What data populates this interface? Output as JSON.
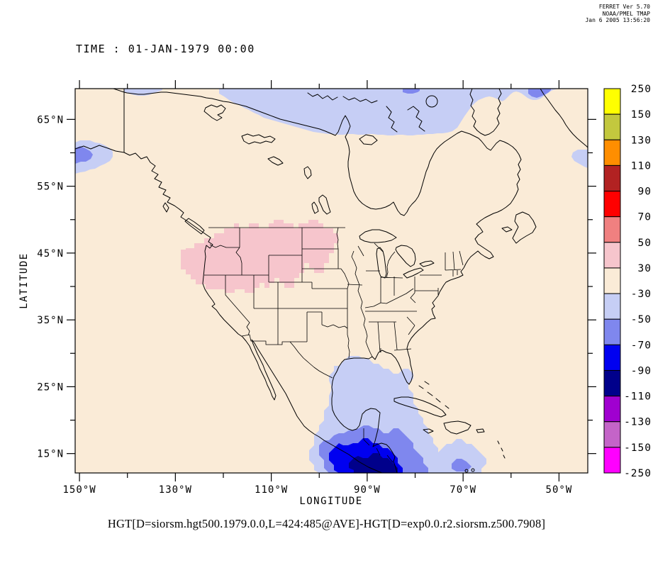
{
  "header": {
    "line1": "FERRET Ver 5.70",
    "line2": "NOAA/PMEL TMAP",
    "line3": "Jan  6 2005 13:56:20"
  },
  "title": "TIME : 01-JAN-1979 00:00",
  "caption": "HGT[D=siorsm.hgt500.1979.0.0,L=424:485@AVE]-HGT[D=exp0.0.r2.siorsm.z500.7908]",
  "chart_data": {
    "type": "heatmap",
    "subtype": "filled-contour geographic map (North America, 500hPa height difference)",
    "title": "TIME : 01-JAN-1979 00:00",
    "xlabel": "LONGITUDE",
    "ylabel": "LATITUDE",
    "x_axis": {
      "ticks": [
        {
          "lon": 150,
          "label": "150°W"
        },
        {
          "lon": 130,
          "label": "130°W"
        },
        {
          "lon": 110,
          "label": "110°W"
        },
        {
          "lon": 90,
          "label": "90°W"
        },
        {
          "lon": 70,
          "label": "70°W"
        },
        {
          "lon": 50,
          "label": "50°W"
        }
      ],
      "minor_tick_lons": [
        140,
        120,
        100,
        80,
        60
      ],
      "range_deg_west": [
        150.9,
        44.0
      ]
    },
    "y_axis": {
      "ticks": [
        {
          "lat": 65,
          "label": "65°N"
        },
        {
          "lat": 55,
          "label": "55°N"
        },
        {
          "lat": 45,
          "label": "45°N"
        },
        {
          "lat": 35,
          "label": "35°N"
        },
        {
          "lat": 25,
          "label": "25°N"
        },
        {
          "lat": 15,
          "label": "15°N"
        }
      ],
      "minor_tick_lats": [
        60,
        50,
        40,
        30,
        20
      ],
      "range_deg_north": [
        12.1,
        69.6
      ]
    },
    "colorbar": {
      "position": "right",
      "level_labels_top_to_bottom": [
        "250",
        "150",
        "130",
        "110",
        "90",
        "70",
        "50",
        "30",
        "-30",
        "-50",
        "-70",
        "-90",
        "-110",
        "-130",
        "-150",
        "-250"
      ],
      "cell_colors_top_to_bottom": [
        "#FFFF00",
        "#C3C83E",
        "#FF8E00",
        "#B22222",
        "#FF0000",
        "#F08080",
        "#F6C5CC",
        "#FAEBD7",
        "#C6CEF5",
        "#7F87EE",
        "#0000F0",
        "#00008B",
        "#A000D0",
        "#C464C8",
        "#FF00FF"
      ]
    },
    "regions": [
      {
        "name": "background-domain",
        "value_range": "-30 to 30",
        "color": "#FAEBD7"
      },
      {
        "name": "arctic-canada-band",
        "value_range": "-50 to -30",
        "color": "#C6CEF5"
      },
      {
        "name": "arctic-band-cores",
        "value_range": "-70 to -50",
        "color": "#7F87EE"
      },
      {
        "name": "alaska-left-edge-blob",
        "value_range": "-70 to -30",
        "color": "#C6CEF5 outer, #7F87EE core"
      },
      {
        "name": "greenland-right-edge-patch",
        "value_range": "-50 to -30",
        "color": "#C6CEF5"
      },
      {
        "name": "pacific-northwest-us",
        "value_range": "30 to 50",
        "color": "#F6C5CC"
      },
      {
        "name": "gulf-of-mexico-lobe",
        "value_range": "-50 to -30",
        "color": "#C6CEF5"
      },
      {
        "name": "central-america-minimum",
        "value_range": "-110 to -30",
        "color": "rings #C6CEF5, #7F87EE, #0000F0, #00008B"
      },
      {
        "name": "caribbean-70w-blob",
        "value_range": "-70 to -30",
        "color": "#C6CEF5 outer, #7F87EE core"
      }
    ]
  },
  "colors": {
    "background": "#FAEBD7",
    "pink": "#F6C5CC",
    "lavender": "#C6CEF5",
    "periwinkle": "#7F87EE",
    "blue": "#0000F0",
    "navy": "#00008B",
    "coastline": "#000000"
  }
}
